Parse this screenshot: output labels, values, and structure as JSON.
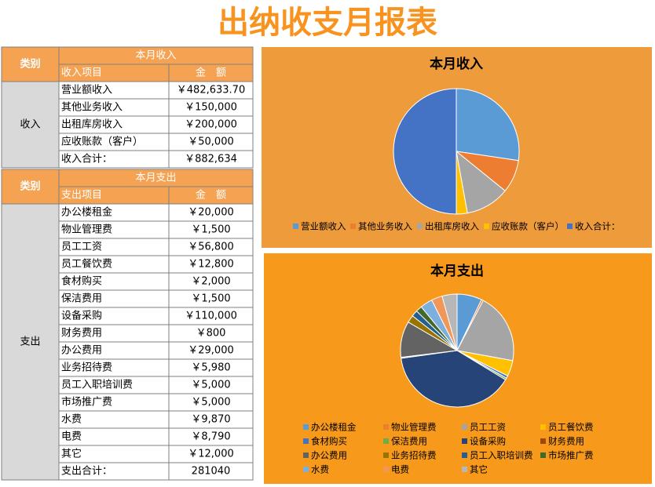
{
  "title": "出纳收支月报表",
  "income_table": {
    "category_header": "类别",
    "section_header": "本月收入",
    "item_header": "收入项目",
    "amount_header": "金　额",
    "category": "收入",
    "rows": [
      {
        "item": "营业额收入",
        "amount": 482633.7,
        "amount_label": "￥482,633.70"
      },
      {
        "item": "其他业务收入",
        "amount": 150000,
        "amount_label": "￥150,000"
      },
      {
        "item": "出租库房收入",
        "amount": 200000,
        "amount_label": "￥200,000"
      },
      {
        "item": "应收账款（客户）",
        "amount": 50000,
        "amount_label": "￥50,000"
      },
      {
        "item": "收入合计：",
        "amount": 882634,
        "amount_label": "￥882,634"
      }
    ]
  },
  "expense_table": {
    "category_header": "类别",
    "section_header": "本月支出",
    "item_header": "支出项目",
    "amount_header": "金　额",
    "category": "支出",
    "rows": [
      {
        "item": "办公楼租金",
        "amount": 20000,
        "amount_label": "￥20,000"
      },
      {
        "item": "物业管理费",
        "amount": 1500,
        "amount_label": "￥1,500"
      },
      {
        "item": "员工工资",
        "amount": 56800,
        "amount_label": "￥56,800"
      },
      {
        "item": "员工餐饮费",
        "amount": 12800,
        "amount_label": "￥12,800"
      },
      {
        "item": "食材购买",
        "amount": 2000,
        "amount_label": "￥2,000"
      },
      {
        "item": "保洁费用",
        "amount": 1500,
        "amount_label": "￥1,500"
      },
      {
        "item": "设备采购",
        "amount": 110000,
        "amount_label": "￥110,000"
      },
      {
        "item": "财务费用",
        "amount": 800,
        "amount_label": "￥800"
      },
      {
        "item": "办公费用",
        "amount": 29000,
        "amount_label": "￥29,000"
      },
      {
        "item": "业务招待费",
        "amount": 5980,
        "amount_label": "￥5,980"
      },
      {
        "item": "员工入职培训费",
        "amount": 5000,
        "amount_label": "￥5,000"
      },
      {
        "item": "市场推广费",
        "amount": 5000,
        "amount_label": "￥5,000"
      },
      {
        "item": "水费",
        "amount": 9870,
        "amount_label": "￥9,870"
      },
      {
        "item": "电费",
        "amount": 8790,
        "amount_label": "￥8,790"
      },
      {
        "item": "其它",
        "amount": 12000,
        "amount_label": "￥12,000"
      }
    ],
    "total": {
      "item": "支出合计：",
      "amount": 281040
    }
  },
  "income_chart": {
    "type": "pie",
    "title": "本月收入",
    "colors": [
      "#5b9bd5",
      "#ed7d31",
      "#a5a5a5",
      "#ffc000",
      "#4472c4"
    ]
  },
  "expense_chart": {
    "type": "pie",
    "title": "本月支出",
    "colors": [
      "#5b9bd5",
      "#ed7d31",
      "#a5a5a5",
      "#ffc000",
      "#4472c4",
      "#70ad47",
      "#264478",
      "#9e480e",
      "#636363",
      "#997300",
      "#255e91",
      "#43682b",
      "#7cafdd",
      "#f1975a",
      "#b7b7b7"
    ]
  }
}
